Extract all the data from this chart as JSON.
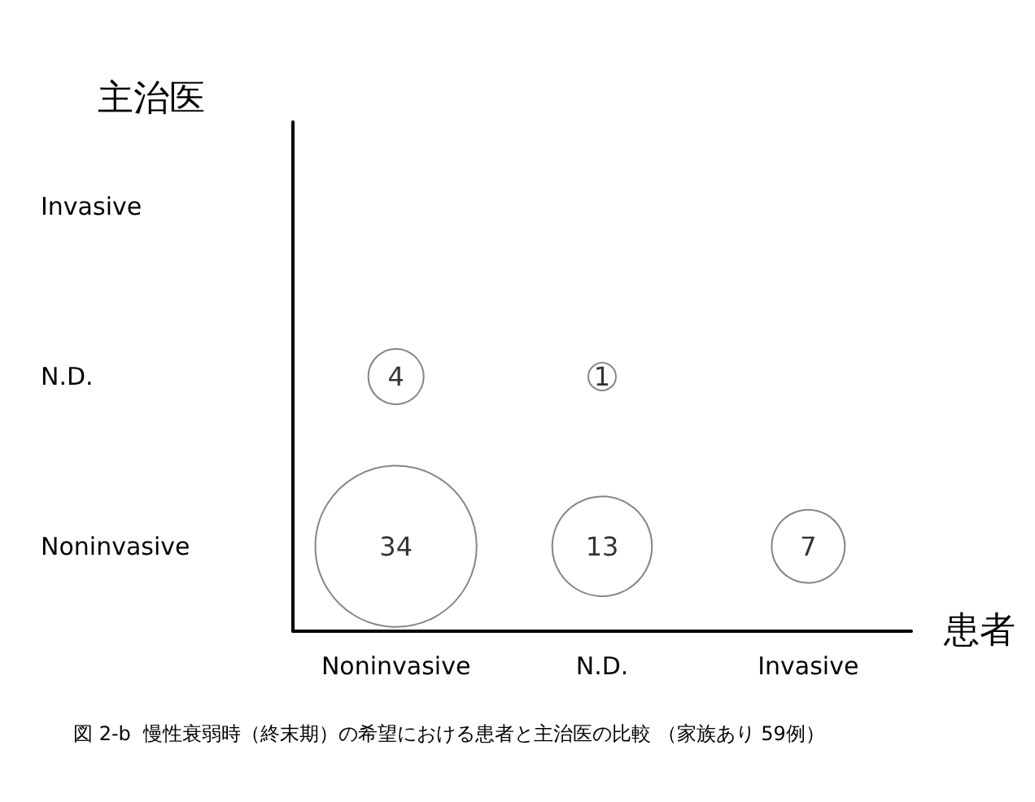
{
  "chart_data": {
    "type": "heatmap",
    "ylabel": "主治医",
    "xlabel": "患者",
    "categories": [
      "Noninvasive",
      "N.D.",
      "Invasive"
    ],
    "y_categories": [
      "Invasive",
      "N.D.",
      "Noninvasive"
    ],
    "cells": [
      [
        null,
        null,
        null
      ],
      [
        4,
        1,
        null
      ],
      [
        34,
        13,
        7
      ]
    ],
    "data_labels": true,
    "color": "#666666",
    "annotations": [
      "図 2-b  慢性衰弱時（終末期）の希望における患者と主治医の比較 （家族あり 59例）"
    ]
  }
}
